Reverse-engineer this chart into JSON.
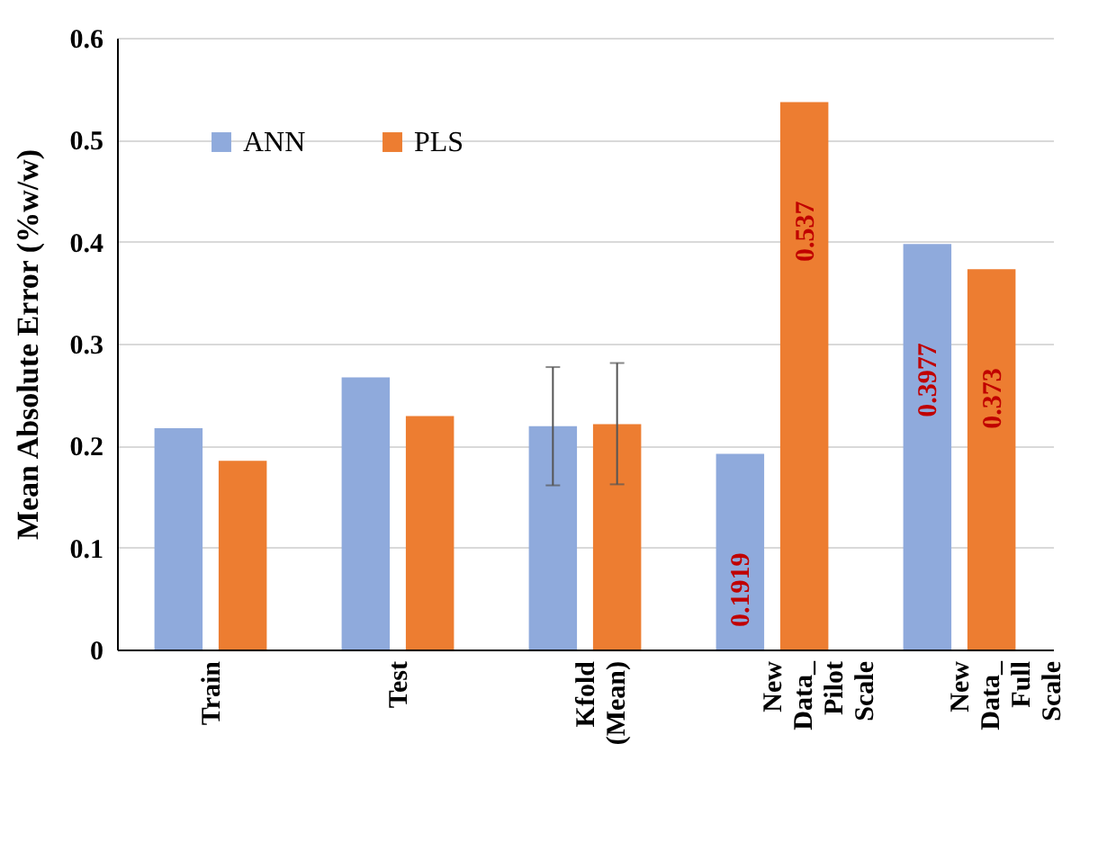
{
  "chart_data": {
    "type": "bar",
    "ylabel": "Mean Absolute Error (%w/w)",
    "categories": [
      "Train",
      "Test",
      "Kfold (Mean)",
      "New Data_ Pilot Scale",
      "New Data_ Full Scale"
    ],
    "series": [
      {
        "name": "ANN",
        "color": "#8faadc",
        "values": [
          0.217,
          0.267,
          0.219,
          0.1919,
          0.3977
        ],
        "errors": [
          null,
          null,
          [
            0.161,
            0.277
          ],
          null,
          null
        ],
        "value_labels": [
          null,
          null,
          null,
          "0.1919",
          "0.3977"
        ]
      },
      {
        "name": "PLS",
        "color": "#ed7d31",
        "values": [
          0.185,
          0.229,
          0.221,
          0.537,
          0.373
        ],
        "errors": [
          null,
          null,
          [
            0.162,
            0.281
          ],
          null,
          null
        ],
        "value_labels": [
          null,
          null,
          null,
          "0.537",
          "0.373"
        ]
      }
    ],
    "ylim": [
      0,
      0.6
    ],
    "yticks": [
      0,
      0.1,
      0.2,
      0.3,
      0.4,
      0.5,
      0.6
    ],
    "grid": "y",
    "legend": "top left"
  }
}
